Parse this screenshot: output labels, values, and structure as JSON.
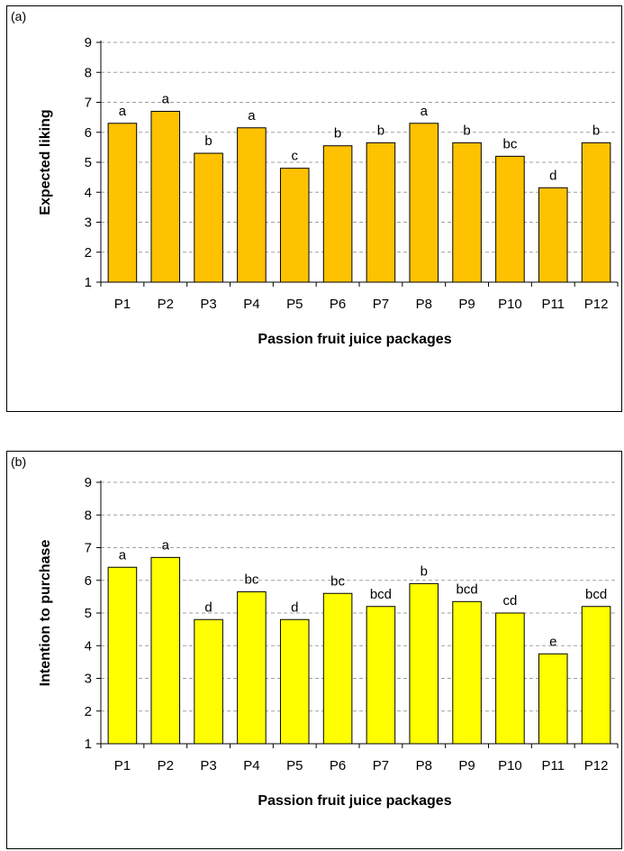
{
  "chart_data": [
    {
      "panel": "(a)",
      "type": "bar",
      "categories": [
        "P1",
        "P2",
        "P3",
        "P4",
        "P5",
        "P6",
        "P7",
        "P8",
        "P9",
        "P10",
        "P11",
        "P12"
      ],
      "values": [
        6.3,
        6.7,
        5.3,
        6.15,
        4.8,
        5.55,
        5.65,
        6.3,
        5.65,
        5.2,
        4.15,
        5.65
      ],
      "letters": [
        "a",
        "a",
        "b",
        "a",
        "c",
        "b",
        "b",
        "a",
        "b",
        "bc",
        "d",
        "b"
      ],
      "xlabel": "Passion fruit juice packages",
      "ylabel": "Expected liking",
      "ylim": [
        1,
        9
      ],
      "yticks": [
        1,
        2,
        3,
        4,
        5,
        6,
        7,
        8,
        9
      ],
      "grid": "horizontal dashed",
      "bar_color": "#FFC200"
    },
    {
      "panel": "(b)",
      "type": "bar",
      "categories": [
        "P1",
        "P2",
        "P3",
        "P4",
        "P5",
        "P6",
        "P7",
        "P8",
        "P9",
        "P10",
        "P11",
        "P12"
      ],
      "values": [
        6.4,
        6.7,
        4.8,
        5.65,
        4.8,
        5.6,
        5.2,
        5.9,
        5.35,
        5.0,
        3.75,
        5.2
      ],
      "letters": [
        "a",
        "a",
        "d",
        "bc",
        "d",
        "bc",
        "bcd",
        "b",
        "bcd",
        "cd",
        "e",
        "bcd"
      ],
      "xlabel": "Passion fruit juice packages",
      "ylabel": "Intention to purchase",
      "ylim": [
        1,
        9
      ],
      "yticks": [
        1,
        2,
        3,
        4,
        5,
        6,
        7,
        8,
        9
      ],
      "grid": "horizontal dashed",
      "bar_color": "#FFFF00"
    }
  ]
}
